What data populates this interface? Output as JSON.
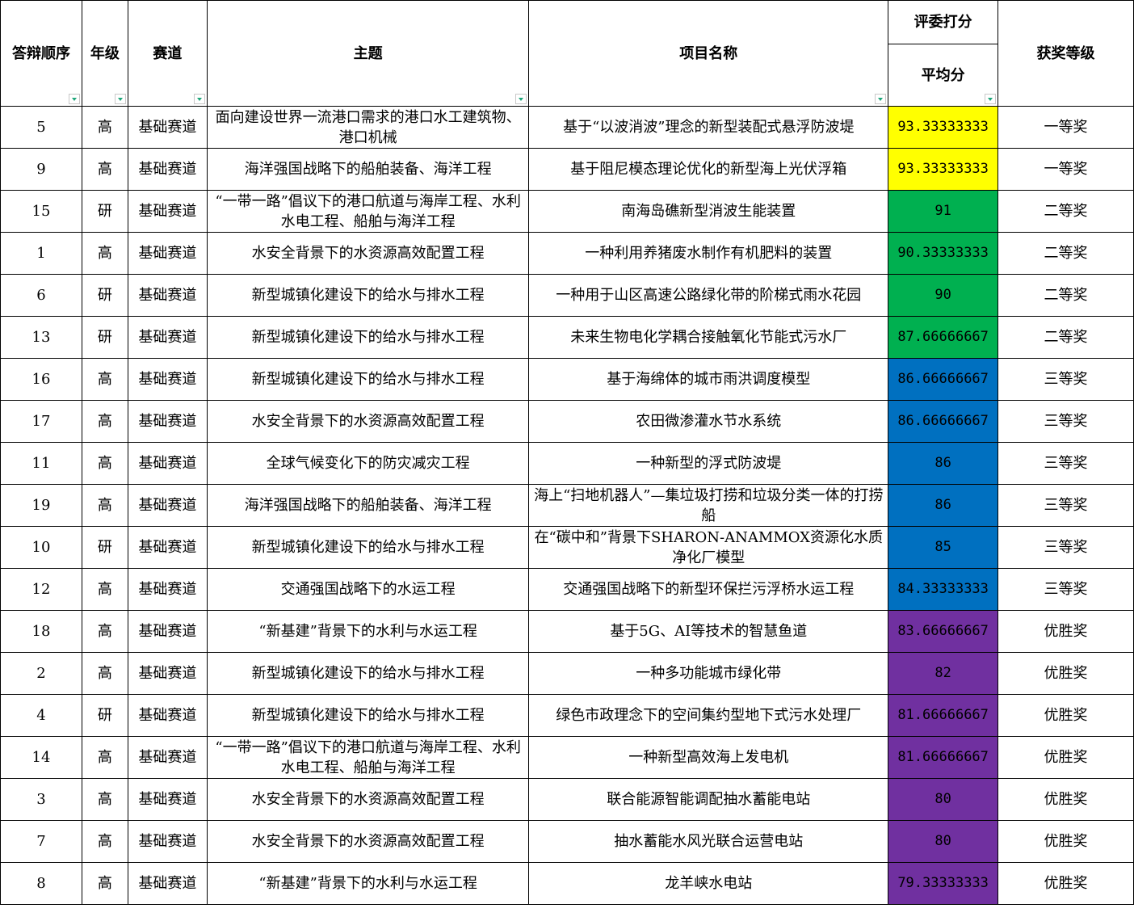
{
  "header": {
    "order": "答辩顺序",
    "grade": "年级",
    "track": "赛道",
    "theme": "主题",
    "project": "项目名称",
    "judges": "评委打分",
    "avg": "平均分",
    "award": "获奖等级"
  },
  "colors": {
    "一等奖": "#FFFF00",
    "二等奖": "#00B050",
    "三等奖": "#0070C0",
    "优胜奖": "#7030A0"
  },
  "rows": [
    {
      "order": "5",
      "grade": "高",
      "track": "基础赛道",
      "theme": "面向建设世界一流港口需求的港口水工建筑物、港口机械",
      "project": "基于“以波消波”理念的新型装配式悬浮防波堤",
      "avg": "93.33333333",
      "award": "一等奖"
    },
    {
      "order": "9",
      "grade": "高",
      "track": "基础赛道",
      "theme": "海洋强国战略下的船舶装备、海洋工程",
      "project": "基于阻尼模态理论优化的新型海上光伏浮箱",
      "avg": "93.33333333",
      "award": "一等奖"
    },
    {
      "order": "15",
      "grade": "研",
      "track": "基础赛道",
      "theme": "“一带一路”倡议下的港口航道与海岸工程、水利水电工程、船舶与海洋工程",
      "project": "南海岛礁新型消波生能装置",
      "avg": "91",
      "award": "二等奖"
    },
    {
      "order": "1",
      "grade": "高",
      "track": "基础赛道",
      "theme": "水安全背景下的水资源高效配置工程",
      "project": "一种利用养猪废水制作有机肥料的装置",
      "avg": "90.33333333",
      "award": "二等奖"
    },
    {
      "order": "6",
      "grade": "研",
      "track": "基础赛道",
      "theme": "新型城镇化建设下的给水与排水工程",
      "project": "一种用于山区高速公路绿化带的阶梯式雨水花园",
      "avg": "90",
      "award": "二等奖"
    },
    {
      "order": "13",
      "grade": "研",
      "track": "基础赛道",
      "theme": "新型城镇化建设下的给水与排水工程",
      "project": "未来生物电化学耦合接触氧化节能式污水厂",
      "avg": "87.66666667",
      "award": "二等奖"
    },
    {
      "order": "16",
      "grade": "高",
      "track": "基础赛道",
      "theme": "新型城镇化建设下的给水与排水工程",
      "project": "基于海绵体的城市雨洪调度模型",
      "avg": "86.66666667",
      "award": "三等奖"
    },
    {
      "order": "17",
      "grade": "高",
      "track": "基础赛道",
      "theme": "水安全背景下的水资源高效配置工程",
      "project": "农田微渗灌水节水系统",
      "avg": "86.66666667",
      "award": "三等奖"
    },
    {
      "order": "11",
      "grade": "高",
      "track": "基础赛道",
      "theme": "全球气候变化下的防灾减灾工程",
      "project": "一种新型的浮式防波堤",
      "avg": "86",
      "award": "三等奖"
    },
    {
      "order": "19",
      "grade": "高",
      "track": "基础赛道",
      "theme": "海洋强国战略下的船舶装备、海洋工程",
      "project": "海上“扫地机器人”—集垃圾打捞和垃圾分类一体的打捞船",
      "avg": "86",
      "award": "三等奖"
    },
    {
      "order": "10",
      "grade": "研",
      "track": "基础赛道",
      "theme": "新型城镇化建设下的给水与排水工程",
      "project": "在“碳中和”背景下SHARON-ANAMMOX资源化水质净化厂模型",
      "avg": "85",
      "award": "三等奖"
    },
    {
      "order": "12",
      "grade": "高",
      "track": "基础赛道",
      "theme": "交通强国战略下的水运工程",
      "project": "交通强国战略下的新型环保拦污浮桥水运工程",
      "avg": "84.33333333",
      "award": "三等奖"
    },
    {
      "order": "18",
      "grade": "高",
      "track": "基础赛道",
      "theme": "“新基建”背景下的水利与水运工程",
      "project": "基于5G、AI等技术的智慧鱼道",
      "avg": "83.66666667",
      "award": "优胜奖"
    },
    {
      "order": "2",
      "grade": "高",
      "track": "基础赛道",
      "theme": "新型城镇化建设下的给水与排水工程",
      "project": "一种多功能城市绿化带",
      "avg": "82",
      "award": "优胜奖"
    },
    {
      "order": "4",
      "grade": "研",
      "track": "基础赛道",
      "theme": "新型城镇化建设下的给水与排水工程",
      "project": "绿色市政理念下的空间集约型地下式污水处理厂",
      "avg": "81.66666667",
      "award": "优胜奖"
    },
    {
      "order": "14",
      "grade": "高",
      "track": "基础赛道",
      "theme": "“一带一路”倡议下的港口航道与海岸工程、水利水电工程、船舶与海洋工程",
      "project": "一种新型高效海上发电机",
      "avg": "81.66666667",
      "award": "优胜奖"
    },
    {
      "order": "3",
      "grade": "高",
      "track": "基础赛道",
      "theme": "水安全背景下的水资源高效配置工程",
      "project": "联合能源智能调配抽水蓄能电站",
      "avg": "80",
      "award": "优胜奖"
    },
    {
      "order": "7",
      "grade": "高",
      "track": "基础赛道",
      "theme": "水安全背景下的水资源高效配置工程",
      "project": "抽水蓄能水风光联合运营电站",
      "avg": "80",
      "award": "优胜奖"
    },
    {
      "order": "8",
      "grade": "高",
      "track": "基础赛道",
      "theme": "“新基建”背景下的水利与水运工程",
      "project": "龙羊峡水电站",
      "avg": "79.33333333",
      "award": "优胜奖"
    }
  ]
}
